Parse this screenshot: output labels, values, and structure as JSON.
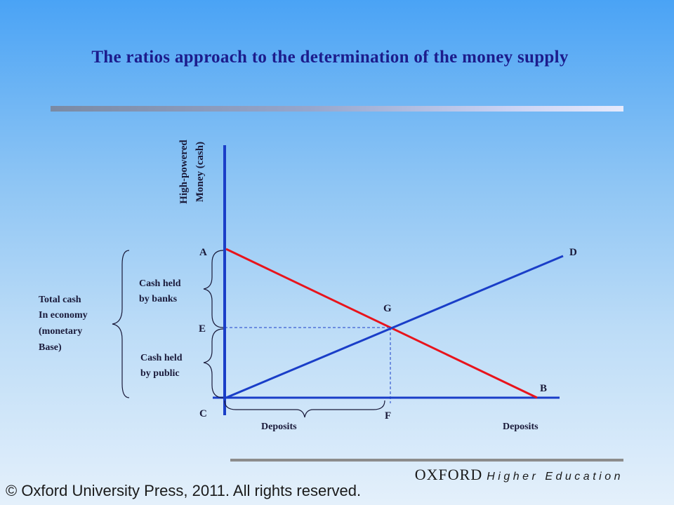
{
  "title": "The ratios approach to the determination of the money supply",
  "diagram": {
    "y_axis_label": [
      "High-powered",
      "Money (cash)"
    ],
    "points": {
      "A": "A",
      "B": "B",
      "C": "C",
      "D": "D",
      "E": "E",
      "F": "F",
      "G": "G"
    },
    "brace_labels": {
      "banks": [
        "Cash held",
        "by banks"
      ],
      "public": [
        "Cash held",
        "by public"
      ],
      "total": [
        "Total cash",
        "In economy",
        "(monetary",
        "Base)"
      ]
    },
    "deposits_under_cf": "Deposits",
    "deposits_right": "Deposits",
    "colors": {
      "axis": "#1a3ec8",
      "line_ab": "#e8141c",
      "line_cd": "#1a3ec8",
      "dashed": "#1a3ec8"
    }
  },
  "footer": {
    "brand_main": "OXFORD",
    "brand_sub": "Higher Education",
    "copyright": "© Oxford University Press, 2011. All rights reserved."
  }
}
